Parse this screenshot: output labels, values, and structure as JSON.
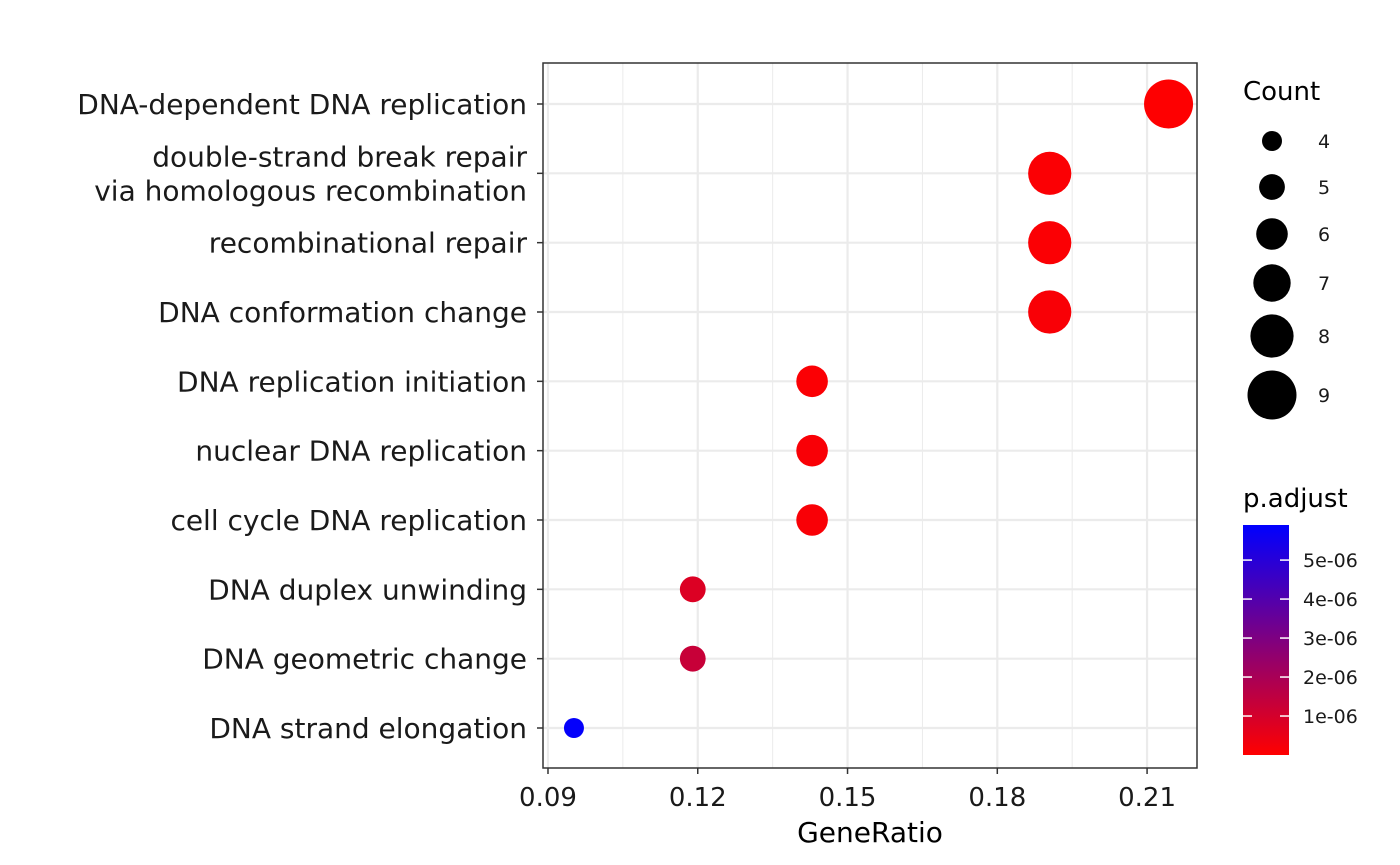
{
  "chart_data": {
    "type": "scatter",
    "xlabel": "GeneRatio",
    "ylabel": "",
    "xlim": [
      0.089,
      0.22
    ],
    "x_ticks": [
      "0.09",
      "0.12",
      "0.15",
      "0.18",
      "0.21"
    ],
    "x_tick_values": [
      0.09,
      0.12,
      0.15,
      0.18,
      0.21
    ],
    "grid": true,
    "categories": [
      "DNA-dependent DNA replication",
      "double-strand break repair\nvia homologous recombination",
      "recombinational repair",
      "DNA conformation change",
      "DNA replication initiation",
      "nuclear DNA replication",
      "cell cycle DNA replication",
      "DNA duplex unwinding",
      "DNA geometric change",
      "DNA strand elongation"
    ],
    "points": [
      {
        "category": "DNA-dependent DNA replication",
        "x": 0.2143,
        "count": 9,
        "p_adjust": 3e-08
      },
      {
        "category": "double-strand break repair\nvia homologous recombination",
        "x": 0.1905,
        "count": 8,
        "p_adjust": 1e-07
      },
      {
        "category": "recombinational repair",
        "x": 0.1905,
        "count": 8,
        "p_adjust": 1e-07
      },
      {
        "category": "DNA conformation change",
        "x": 0.1905,
        "count": 8,
        "p_adjust": 1.5e-07
      },
      {
        "category": "DNA replication initiation",
        "x": 0.1429,
        "count": 6,
        "p_adjust": 1e-07
      },
      {
        "category": "nuclear DNA replication",
        "x": 0.1429,
        "count": 6,
        "p_adjust": 1.5e-07
      },
      {
        "category": "cell cycle DNA replication",
        "x": 0.1429,
        "count": 6,
        "p_adjust": 1.5e-07
      },
      {
        "category": "DNA duplex unwinding",
        "x": 0.119,
        "count": 5,
        "p_adjust": 8e-07
      },
      {
        "category": "DNA geometric change",
        "x": 0.119,
        "count": 5,
        "p_adjust": 1.3e-06
      },
      {
        "category": "DNA strand elongation",
        "x": 0.0952,
        "count": 4,
        "p_adjust": 5.8e-06
      }
    ],
    "size_legend": {
      "title": "Count",
      "values": [
        4,
        5,
        6,
        7,
        8,
        9
      ],
      "labels": [
        "4",
        "5",
        "6",
        "7",
        "8",
        "9"
      ]
    },
    "color_legend": {
      "title": "p.adjust",
      "range": [
        0,
        5.9e-06
      ],
      "breaks": [
        1e-06,
        2e-06,
        3e-06,
        4e-06,
        5e-06
      ],
      "labels": [
        "1e-06",
        "2e-06",
        "3e-06",
        "4e-06",
        "5e-06"
      ],
      "low_color": "#ff0000",
      "high_color": "#0000ff"
    }
  }
}
